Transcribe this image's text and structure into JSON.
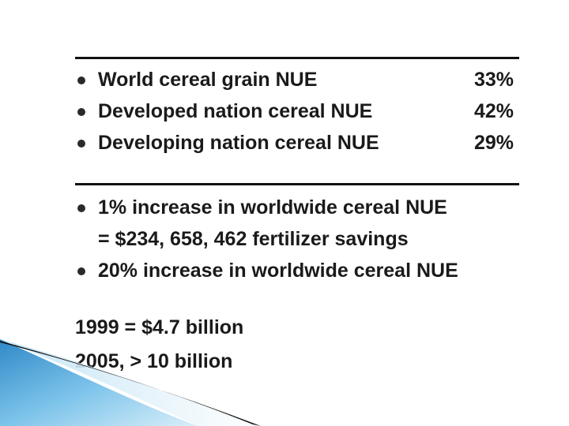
{
  "stats": [
    {
      "label": "World cereal grain NUE",
      "value": "33%"
    },
    {
      "label": "Developed nation cereal NUE",
      "value": "42%"
    },
    {
      "label": "Developing nation cereal NUE",
      "value": "29%"
    }
  ],
  "bullets": [
    {
      "line1": "1% increase in worldwide cereal NUE",
      "line2": "= $234, 658, 462 fertilizer savings"
    },
    {
      "line1": "20% increase in worldwide cereal NUE"
    }
  ],
  "footer_lines": [
    "1999  = $4.7 billion",
    "2005, > 10 billion"
  ]
}
